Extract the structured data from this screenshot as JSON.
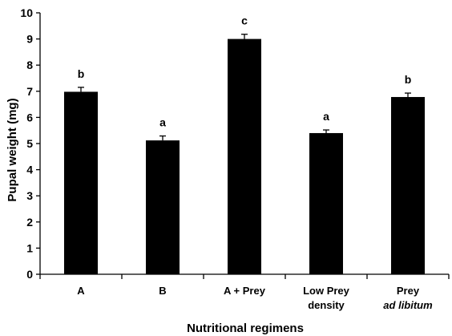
{
  "chart_data": {
    "type": "bar",
    "title": "",
    "xlabel": "Nutritional regimens",
    "ylabel": "Pupal weight (mg)",
    "ylim": [
      0,
      10
    ],
    "yticks": [
      0,
      1,
      2,
      3,
      4,
      5,
      6,
      7,
      8,
      9,
      10
    ],
    "grid": false,
    "bar_color": "#000000",
    "categories": [
      {
        "lines": [
          "A"
        ],
        "italic": [
          false
        ]
      },
      {
        "lines": [
          "B"
        ],
        "italic": [
          false
        ]
      },
      {
        "lines": [
          "A + Prey"
        ],
        "italic": [
          false
        ]
      },
      {
        "lines": [
          "Low  Prey",
          "density"
        ],
        "italic": [
          false,
          false
        ]
      },
      {
        "lines": [
          "Prey",
          "ad libitum"
        ],
        "italic": [
          false,
          true
        ]
      }
    ],
    "values": [
      6.98,
      5.12,
      9.0,
      5.4,
      6.78
    ],
    "errors": [
      0.17,
      0.17,
      0.18,
      0.12,
      0.15
    ],
    "significance_labels": [
      "b",
      "a",
      "c",
      "a",
      "b"
    ]
  }
}
